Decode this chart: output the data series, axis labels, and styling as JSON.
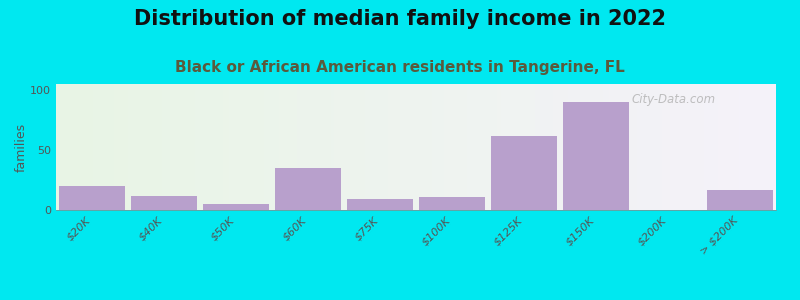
{
  "title": "Distribution of median family income in 2022",
  "subtitle": "Black or African American residents in Tangerine, FL",
  "ylabel": "families",
  "categories": [
    "$20K",
    "$40K",
    "$50K",
    "$60K",
    "$75K",
    "$100K",
    "$125K",
    "$150K",
    "$200K",
    "> $200K"
  ],
  "values": [
    20,
    12,
    5,
    35,
    9,
    11,
    62,
    90,
    0,
    17
  ],
  "bar_color": "#b8a0cc",
  "bar_edgecolor": "#b8a0cc",
  "background_outer": "#00e8f0",
  "background_inner": "#e8f5e5",
  "yticks": [
    0,
    50,
    100
  ],
  "ylim": [
    0,
    105
  ],
  "title_fontsize": 15,
  "subtitle_fontsize": 11,
  "ylabel_fontsize": 9,
  "tick_fontsize": 8,
  "watermark": "City-Data.com",
  "subtitle_color": "#5a5a3c",
  "title_color": "#111111",
  "tick_color": "#555555"
}
